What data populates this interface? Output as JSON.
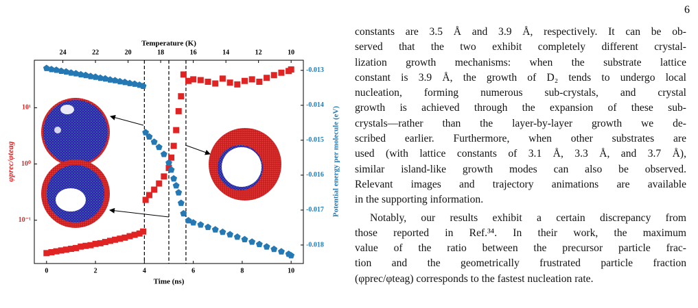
{
  "page_number": "6",
  "chart_data": {
    "type": "scatter",
    "xlabel": "Time (ns)",
    "x2label": "Temperature (K)",
    "ylabel": "φprec/φteag",
    "y2label": "Potential energy per molecule (eV)",
    "x": [
      0,
      0.2,
      0.4,
      0.6,
      0.8,
      1.0,
      1.2,
      1.4,
      1.6,
      1.8,
      2.0,
      2.2,
      2.4,
      2.6,
      2.8,
      3.0,
      3.2,
      3.4,
      3.6,
      3.8,
      3.95,
      4.05,
      4.2,
      4.4,
      4.6,
      4.8,
      5.0,
      5.1,
      5.2,
      5.3,
      5.4,
      5.5,
      5.6,
      5.8,
      6.0,
      6.3,
      6.6,
      6.9,
      7.2,
      7.5,
      7.8,
      8.1,
      8.4,
      8.7,
      9.0,
      9.3,
      9.6,
      9.9,
      10.0
    ],
    "xlim": [
      -0.5,
      10.5
    ],
    "xticks": [
      0,
      2,
      4,
      6,
      8,
      10
    ],
    "x2lim": [
      25.75,
      9.25
    ],
    "x2ticks": [
      24,
      22,
      20,
      18,
      16,
      14,
      12,
      10
    ],
    "ylim": [
      0.017,
      70
    ],
    "ylog": true,
    "yticks": [
      {
        "value": 0.1,
        "label": "10⁻¹"
      },
      {
        "value": 1,
        "label": "10⁰"
      },
      {
        "value": 10,
        "label": "10¹"
      }
    ],
    "y2lim": [
      -0.01853,
      -0.01271
    ],
    "y2ticks": [
      -0.013,
      -0.014,
      -0.015,
      -0.016,
      -0.017,
      -0.018
    ],
    "vlines": [
      4,
      5,
      5.7
    ],
    "series": [
      {
        "color": "#e02424",
        "marker": "square",
        "values": [
          0.026,
          0.027,
          0.028,
          0.029,
          0.03,
          0.031,
          0.032,
          0.034,
          0.035,
          0.036,
          0.038,
          0.039,
          0.041,
          0.043,
          0.045,
          0.047,
          0.049,
          0.052,
          0.055,
          0.058,
          0.063,
          0.23,
          0.28,
          0.35,
          0.45,
          0.6,
          0.85,
          1.3,
          2.1,
          4,
          8.7,
          16,
          39,
          30,
          32,
          31,
          29,
          27,
          33,
          28,
          26,
          30,
          32,
          29,
          34,
          38,
          42,
          45,
          48
        ]
      },
      {
        "color": "#2479b4",
        "marker": "pentagon",
        "axis": "y2",
        "values": [
          -0.01294,
          -0.01297,
          -0.01299,
          -0.01302,
          -0.01304,
          -0.01307,
          -0.01309,
          -0.01312,
          -0.01314,
          -0.01317,
          -0.01319,
          -0.01322,
          -0.01324,
          -0.01327,
          -0.01329,
          -0.01332,
          -0.01334,
          -0.01337,
          -0.01339,
          -0.01342,
          -0.01345,
          -0.01478,
          -0.0149,
          -0.01505,
          -0.0152,
          -0.0154,
          -0.01565,
          -0.01585,
          -0.0161,
          -0.0163,
          -0.0165,
          -0.0168,
          -0.0171,
          -0.0173,
          -0.01736,
          -0.01742,
          -0.01749,
          -0.01756,
          -0.01763,
          -0.0177,
          -0.01777,
          -0.01784,
          -0.01791,
          -0.01798,
          -0.01805,
          -0.01812,
          -0.01819,
          -0.01826,
          -0.0183
        ]
      }
    ]
  },
  "text": {
    "paragraphs": [
      [
        "constants are 3.5 Å and 3.9 Å, respectively. It can be ob-",
        "served that the two exhibit completely different crystal-",
        "lization growth mechanisms: when the substrate lattice",
        "constant is 3.9 Å, the growth of D₂ tends to undergo local",
        "nucleation, forming numerous sub-crystals, and crystal",
        "growth is achieved through the expansion of these sub-",
        "crystals—rather than the layer-by-layer growth we de-",
        "scribed earlier. Furthermore, when other substrates are",
        "used (with lattice constants of 3.1 Å, 3.3 Å, and 3.7 Å),",
        "similar island-like growth modes can also be observed.",
        "Relevant images and trajectory animations are available",
        "in the supporting information."
      ],
      [
        "Notably, our results exhibit a certain discrepancy from",
        "those reported in Ref.³⁴. In their work, the maximum",
        "value of the ratio between the precursor particle frac-",
        "tion and the geometrically frustrated particle fraction",
        "(φprec/φteag) corresponds to the fastest nucleation rate."
      ]
    ]
  }
}
